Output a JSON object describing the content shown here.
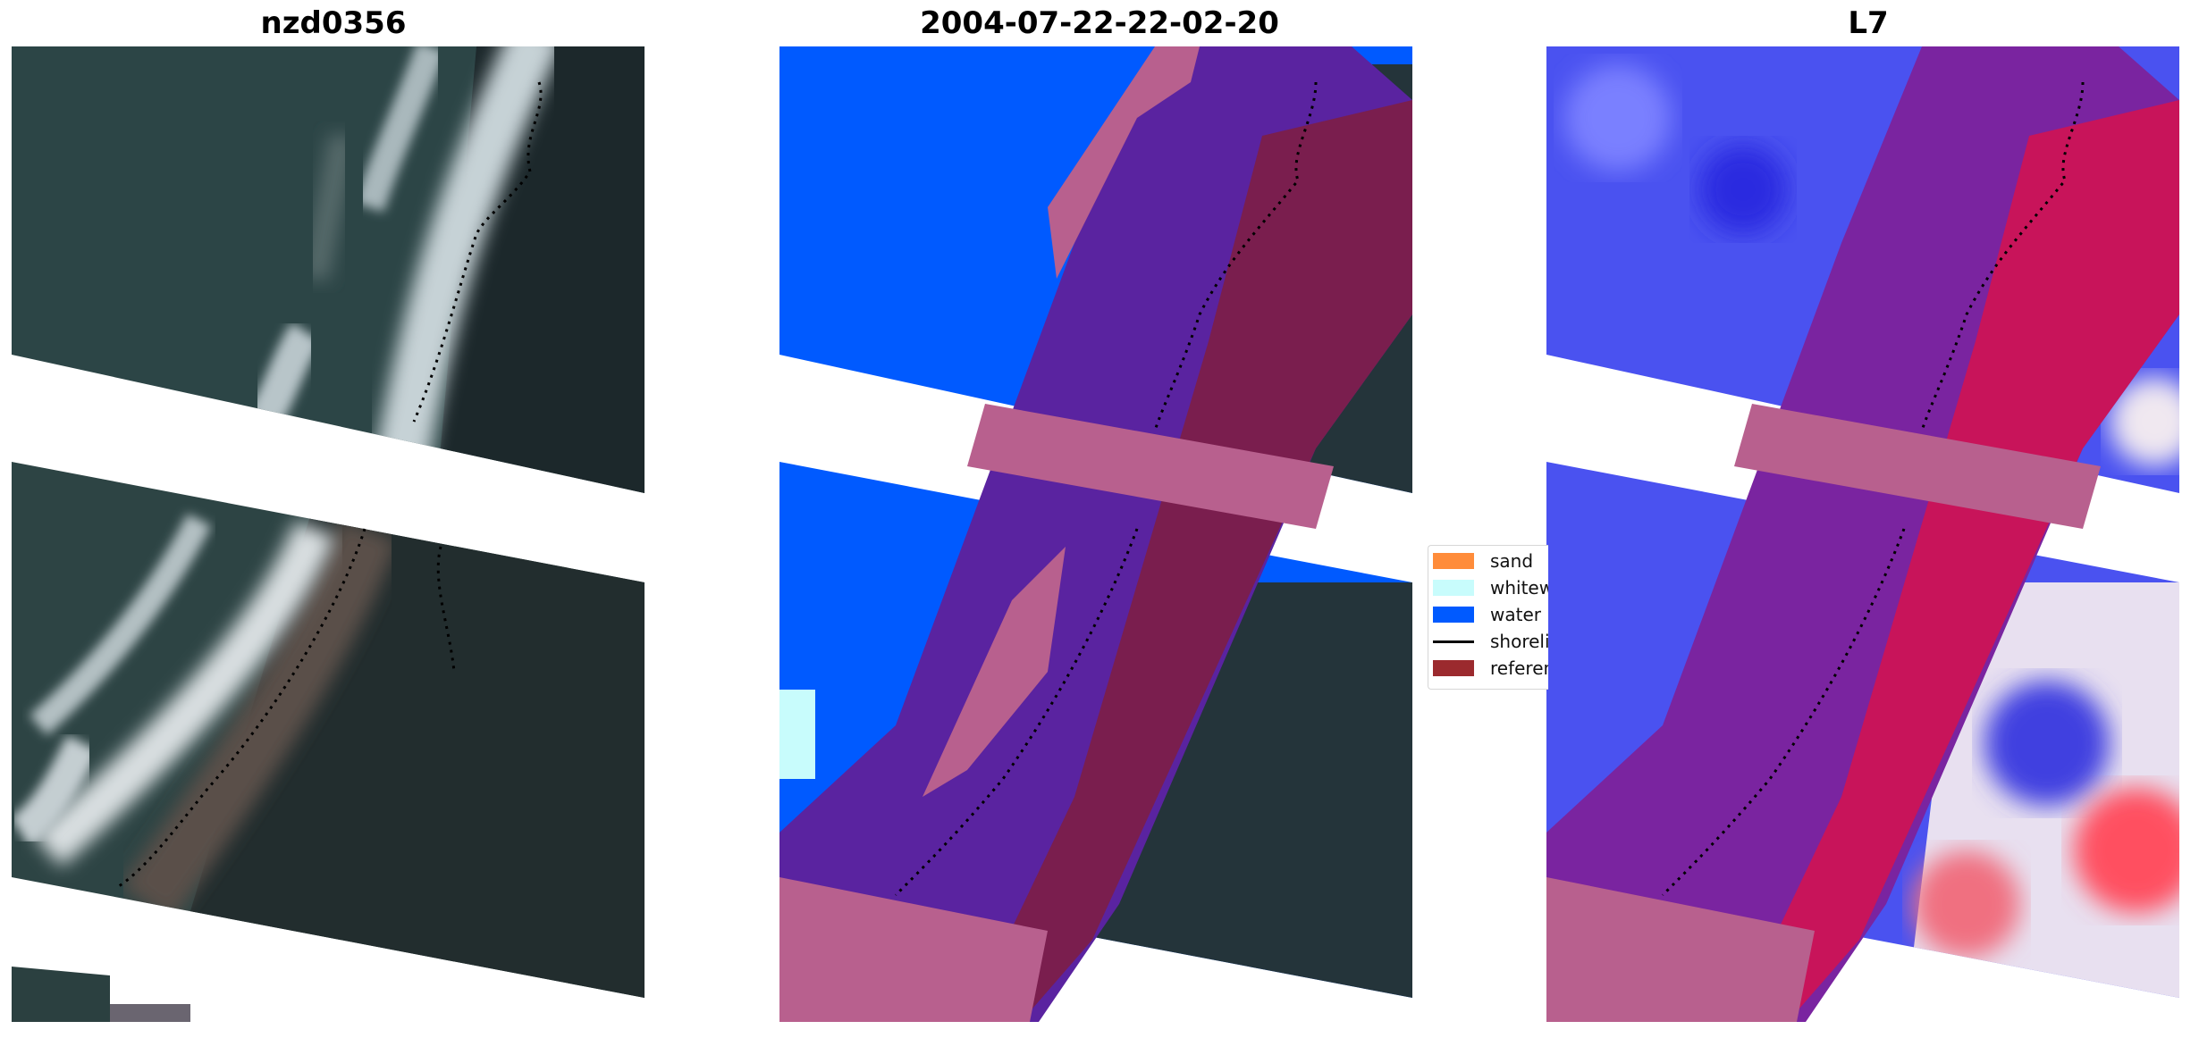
{
  "panels": [
    {
      "title": "nzd0356"
    },
    {
      "title": "2004-07-22-22-02-20"
    },
    {
      "title": "L7"
    }
  ],
  "legend": {
    "items": [
      {
        "label": "sand",
        "kind": "patch",
        "color": "#ff8c3a"
      },
      {
        "label": "whitewater",
        "kind": "patch",
        "color": "#c8fcfc"
      },
      {
        "label": "water",
        "kind": "patch",
        "color": "#005aff"
      },
      {
        "label": "shoreline",
        "kind": "line",
        "color": "#000000"
      },
      {
        "label": "reference",
        "kind": "patch",
        "color": "#9b2a2e"
      }
    ]
  },
  "colors": {
    "ocean_dark": "#2f4a4a",
    "land_dark": "#1f2d30",
    "surf_white": "#c9d4d8",
    "water_class": "#005aff",
    "whitewater_class": "#c8fcfc",
    "overlay_purple": "#5a23a0",
    "overlay_pink": "#b8608e",
    "overlay_maroon": "#7a1e4e",
    "index_blue": "#3c3cff",
    "index_red": "#e01830"
  }
}
